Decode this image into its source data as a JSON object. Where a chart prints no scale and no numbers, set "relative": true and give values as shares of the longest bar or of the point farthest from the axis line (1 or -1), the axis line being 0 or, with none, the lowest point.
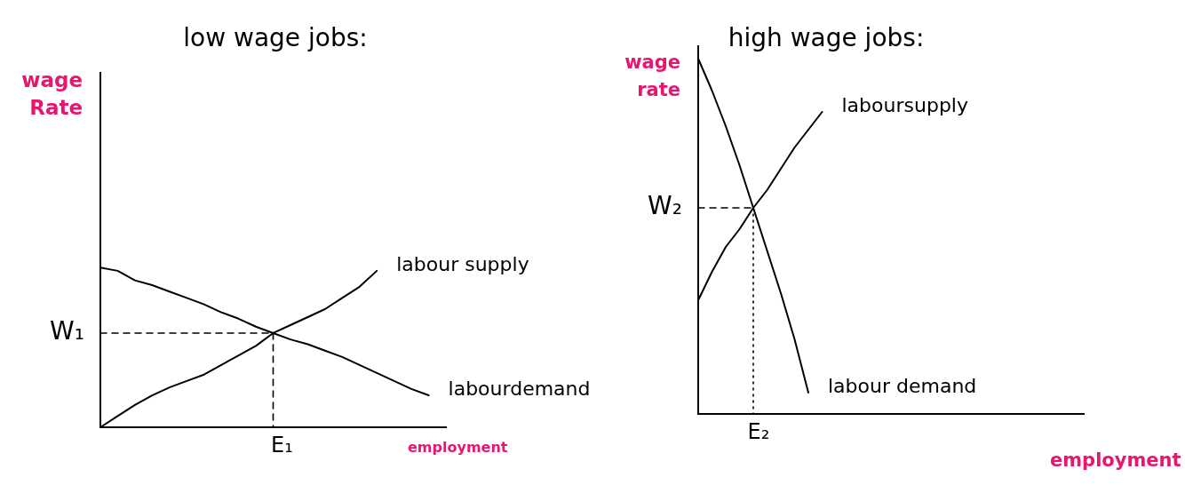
{
  "chart_data": [
    {
      "type": "line",
      "title": "low wage jobs:",
      "xlabel": "employment",
      "ylabel": "wage Rate",
      "relative": true,
      "categories": [
        null,
        null,
        null,
        null,
        null,
        null,
        null,
        null,
        null,
        null,
        null,
        null,
        null,
        null,
        null,
        null,
        null,
        null,
        null,
        null,
        null
      ],
      "series": [
        {
          "name": "labour supply",
          "color": "#000000",
          "values": [
            0,
            0.07,
            0.14,
            0.2,
            0.25,
            0.29,
            0.33,
            0.39,
            0.45,
            0.51,
            0.59,
            0.64,
            0.69,
            0.74,
            0.81,
            0.88,
            0.98,
            null,
            null,
            null,
            null
          ]
        },
        {
          "name": "labourdemand",
          "color": "#000000",
          "values": [
            1.0,
            0.98,
            0.92,
            0.89,
            0.85,
            0.81,
            0.77,
            0.72,
            0.68,
            0.63,
            0.59,
            0.55,
            0.52,
            0.48,
            0.44,
            0.39,
            0.34,
            0.29,
            0.24,
            0.2,
            null
          ]
        }
      ],
      "ref_lines": [
        {
          "axis": "y",
          "value": 0.59,
          "label": "W₁",
          "line_style": "dashed",
          "color": "#000000"
        }
      ],
      "annotations": [
        "E₁"
      ]
    },
    {
      "type": "line",
      "title": "high wage jobs:",
      "xlabel": "employment",
      "ylabel": "wage rate",
      "relative": true,
      "categories": [
        null,
        null,
        null,
        null,
        null,
        null,
        null,
        null,
        null,
        null,
        null,
        null,
        null,
        null,
        null,
        null,
        null,
        null,
        null,
        null,
        null,
        null,
        null,
        null,
        null,
        null,
        null,
        null,
        null
      ],
      "series": [
        {
          "name": "laboursupply",
          "color": "#000000",
          "values": [
            0.32,
            0.4,
            0.47,
            0.52,
            0.58,
            0.63,
            0.69,
            0.75,
            0.8,
            0.85,
            null,
            null,
            null,
            null,
            null,
            null,
            null,
            null,
            null,
            null,
            null,
            null,
            null,
            null,
            null,
            null,
            null,
            null,
            null
          ]
        },
        {
          "name": "labour demand",
          "color": "#000000",
          "values": [
            1.0,
            0.91,
            0.81,
            0.7,
            0.58,
            0.46,
            0.34,
            0.21,
            0.06,
            null,
            null,
            null,
            null,
            null,
            null,
            null,
            null,
            null,
            null,
            null,
            null,
            null,
            null,
            null,
            null,
            null,
            null,
            null,
            null
          ]
        }
      ],
      "ref_lines": [
        {
          "axis": "y",
          "value": 0.58,
          "label": "W₂",
          "line_style": "dashed",
          "color": "#000000"
        }
      ],
      "annotations": [
        "E₂"
      ]
    }
  ]
}
